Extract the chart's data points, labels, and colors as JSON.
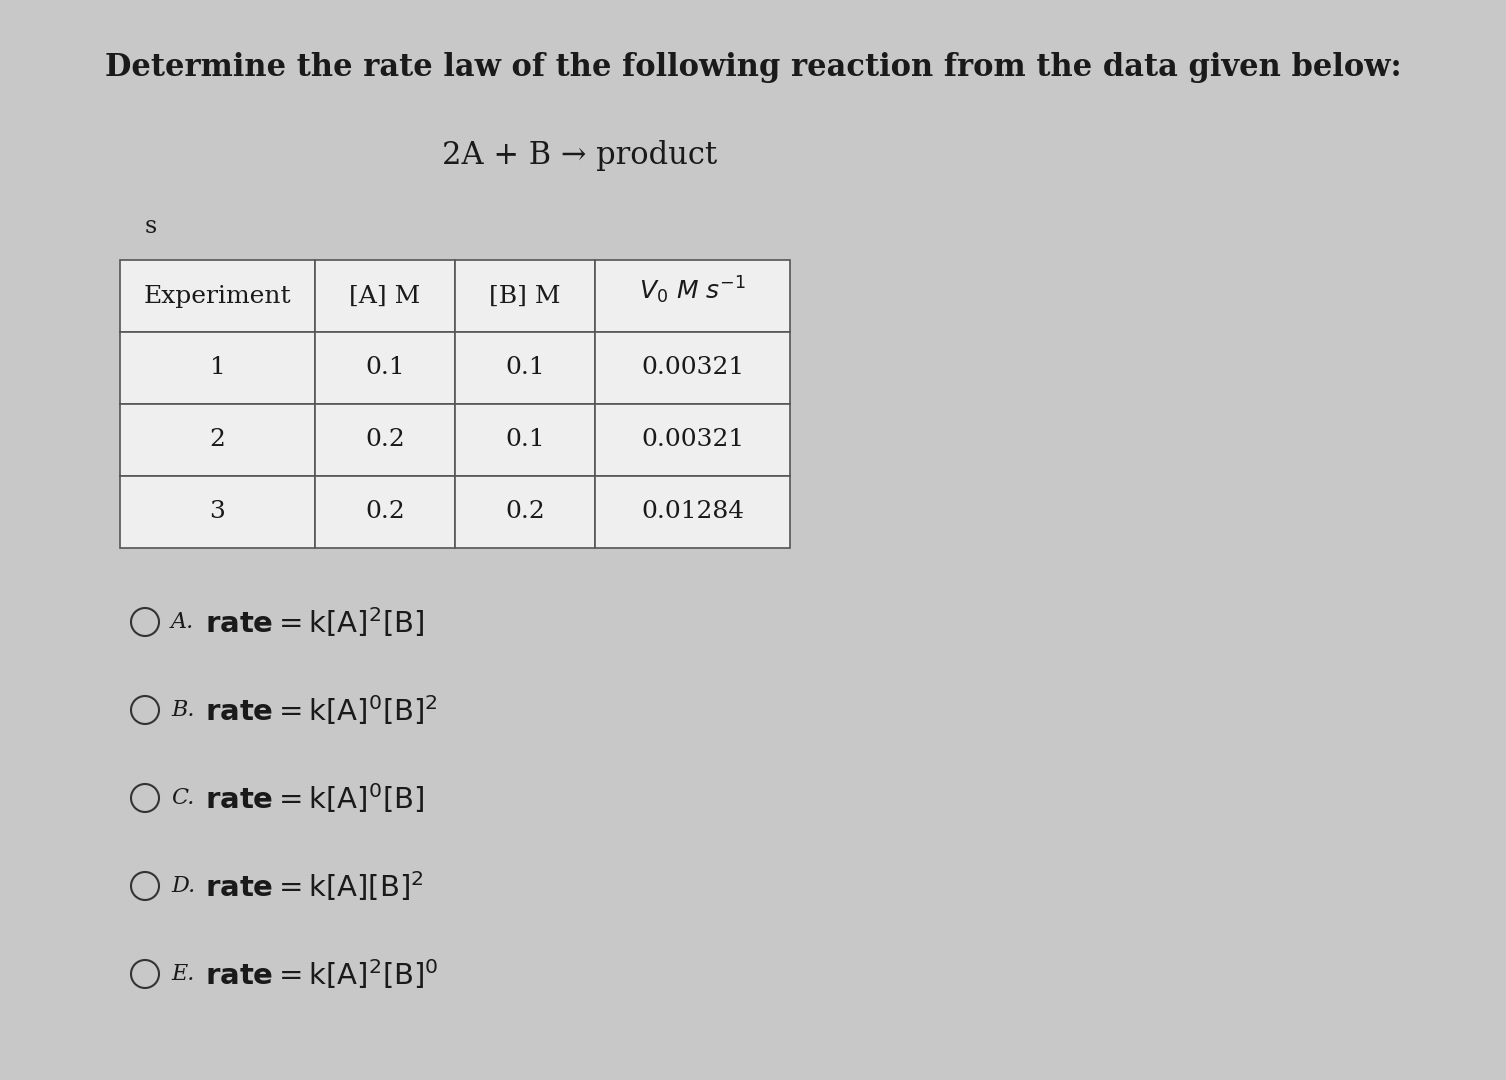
{
  "title": "Determine the rate law of the following reaction from the data given below:",
  "reaction": "2A + B → product",
  "small_s": "s",
  "table_col_headers": [
    "Experiment",
    "[A] M",
    "[B] M"
  ],
  "table_data": [
    [
      "1",
      "0.1",
      "0.1",
      "0.00321"
    ],
    [
      "2",
      "0.2",
      "0.1",
      "0.00321"
    ],
    [
      "3",
      "0.2",
      "0.2",
      "0.01284"
    ]
  ],
  "options": [
    {
      "label": "A",
      "latex": "$\\mathrm{rate} = \\mathrm{k[A]^2[B]}$"
    },
    {
      "label": "B",
      "latex": "$\\mathrm{rate} = \\mathrm{k[A]^0[B]^2}$"
    },
    {
      "label": "C",
      "latex": "$\\mathrm{rate} = \\mathrm{k[A]^0[B]}$"
    },
    {
      "label": "D",
      "latex": "$\\mathrm{rate} = \\mathrm{k[A][B]^2}$"
    },
    {
      "label": "E",
      "latex": "$\\mathrm{rate} = \\mathrm{k[A]^2[B]^0}$"
    }
  ],
  "bg_color": "#c8c8c8",
  "table_bg": "#efefef",
  "text_color": "#1a1a1a",
  "border_color": "#555555"
}
